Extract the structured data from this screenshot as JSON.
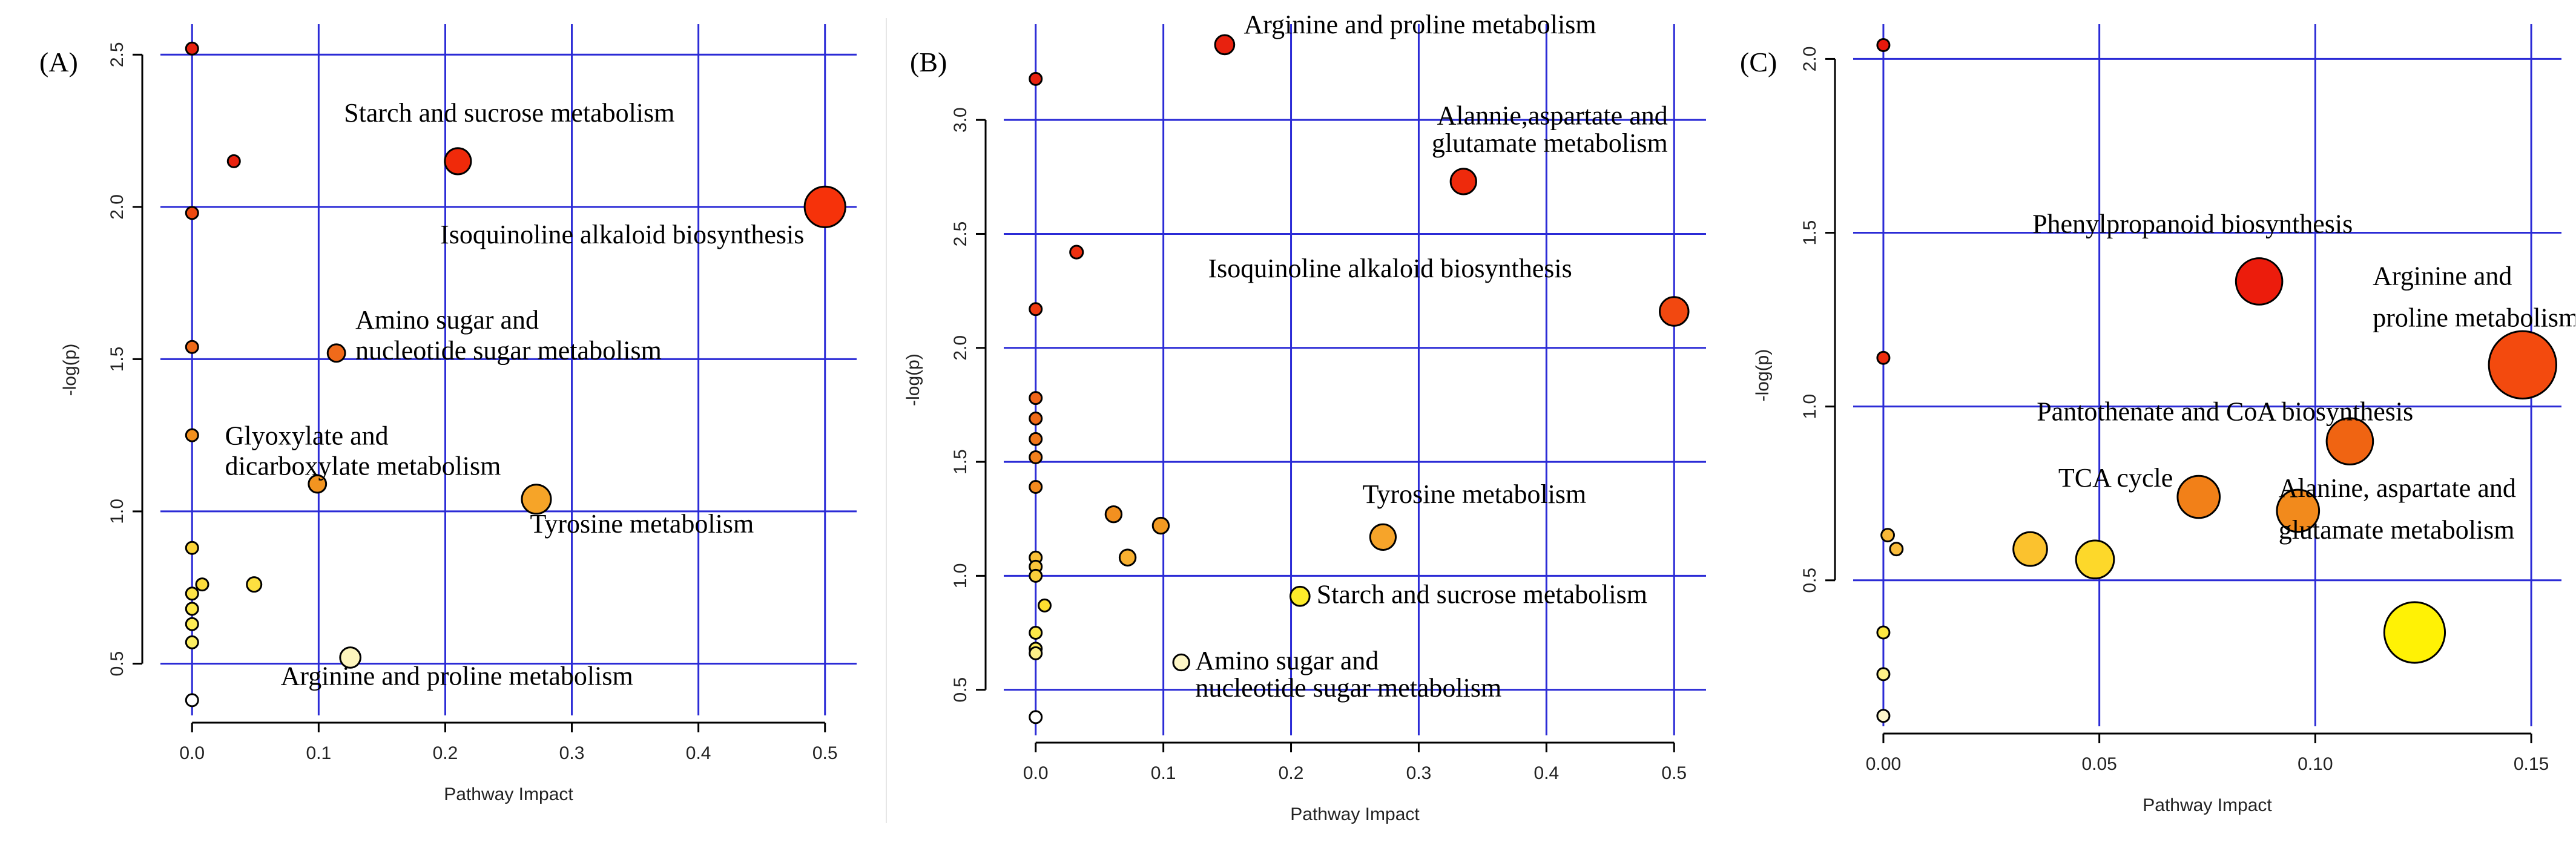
{
  "chart_data": [
    {
      "type": "scatter",
      "title": "(A)",
      "xlabel": "Pathway Impact",
      "ylabel": "-log(p)",
      "xlim": [
        -0.025,
        0.525
      ],
      "ylim": [
        0.33,
        2.6
      ],
      "xticks": [
        0,
        0.1,
        0.2,
        0.3,
        0.4,
        0.5
      ],
      "xtick_labels": [
        "0.0",
        "0.1",
        "0.2",
        "0.3",
        "0.4",
        "0.5"
      ],
      "yticks": [
        0.5,
        1.0,
        1.5,
        2.0,
        2.5
      ],
      "ytick_labels": [
        "0.5",
        "1.0",
        "1.5",
        "2.0",
        "2.5"
      ],
      "grid_x": [
        0,
        0.1,
        0.2,
        0.3,
        0.4,
        0.5
      ],
      "grid_y": [
        0.5,
        1.0,
        1.5,
        2.0,
        2.5
      ],
      "points": [
        {
          "x": 0.0,
          "y": 2.52,
          "size": 0.05,
          "color": "#e8220f"
        },
        {
          "x": 0.033,
          "y": 2.15,
          "size": 0.2,
          "color": "#e8220f"
        },
        {
          "x": 0.21,
          "y": 2.15,
          "size": 0.45,
          "color": "#f02a0a"
        },
        {
          "x": 0.0,
          "y": 1.98,
          "size": 0.05,
          "color": "#ee4a10"
        },
        {
          "x": 0.5,
          "y": 2.0,
          "size": 0.7,
          "color": "#f6320a"
        },
        {
          "x": 0.0,
          "y": 1.54,
          "size": 0.05,
          "color": "#ee6a18"
        },
        {
          "x": 0.114,
          "y": 1.52,
          "size": 0.3,
          "color": "#f06a1a"
        },
        {
          "x": 0.0,
          "y": 1.25,
          "size": 0.05,
          "color": "#f2901e"
        },
        {
          "x": 0.099,
          "y": 1.09,
          "size": 0.3,
          "color": "#f29420"
        },
        {
          "x": 0.272,
          "y": 1.04,
          "size": 0.5,
          "color": "#f6a428"
        },
        {
          "x": 0.0,
          "y": 0.88,
          "size": 0.05,
          "color": "#fbd43a"
        },
        {
          "x": 0.008,
          "y": 0.76,
          "size": 0.1,
          "color": "#fbdc3c"
        },
        {
          "x": 0.049,
          "y": 0.76,
          "size": 0.25,
          "color": "#fde040"
        },
        {
          "x": 0.0,
          "y": 0.73,
          "size": 0.05,
          "color": "#fde346"
        },
        {
          "x": 0.0,
          "y": 0.68,
          "size": 0.05,
          "color": "#fde848"
        },
        {
          "x": 0.0,
          "y": 0.63,
          "size": 0.05,
          "color": "#fdec54"
        },
        {
          "x": 0.0,
          "y": 0.57,
          "size": 0.05,
          "color": "#fdef62"
        },
        {
          "x": 0.125,
          "y": 0.52,
          "size": 0.35,
          "color": "#fdf5bd"
        },
        {
          "x": 0.0,
          "y": 0.38,
          "size": 0.05,
          "color": "#ffffff"
        }
      ],
      "annotations": [
        {
          "text": "Starch and sucrose metabolism",
          "x": 0.12,
          "y": 2.28,
          "anchor": "start"
        },
        {
          "text": "Isoquinoline alkaloid biosynthesis",
          "x": 0.196,
          "y": 1.88,
          "anchor": "start"
        },
        {
          "text": "Amino sugar and",
          "x": 0.129,
          "y": 1.6,
          "anchor": "start"
        },
        {
          "text": "nucleotide sugar metabolism",
          "x": 0.129,
          "y": 1.5,
          "anchor": "start"
        },
        {
          "text": "Glyoxylate and",
          "x": 0.026,
          "y": 1.22,
          "anchor": "start"
        },
        {
          "text": "dicarboxylate metabolism",
          "x": 0.026,
          "y": 1.12,
          "anchor": "start"
        },
        {
          "text": "Tyrosine metabolism",
          "x": 0.267,
          "y": 0.93,
          "anchor": "start"
        },
        {
          "text": "Arginine and proline metabolism",
          "x": 0.07,
          "y": 0.43,
          "anchor": "start"
        }
      ]
    },
    {
      "type": "scatter",
      "title": "(B)",
      "xlabel": "Pathway Impact",
      "ylabel": "-log(p)",
      "xlim": [
        -0.025,
        0.525
      ],
      "ylim": [
        0.3,
        3.42
      ],
      "xticks": [
        0,
        0.1,
        0.2,
        0.3,
        0.4,
        0.5
      ],
      "xtick_labels": [
        "0.0",
        "0.1",
        "0.2",
        "0.3",
        "0.4",
        "0.5"
      ],
      "yticks": [
        0.5,
        1.0,
        1.5,
        2.0,
        2.5,
        3.0
      ],
      "ytick_labels": [
        "0.5",
        "1.0",
        "1.5",
        "2.0",
        "2.5",
        "3.0"
      ],
      "grid_x": [
        0,
        0.1,
        0.2,
        0.3,
        0.4,
        0.5
      ],
      "grid_y": [
        0.5,
        1.0,
        1.5,
        2.0,
        2.5,
        3.0
      ],
      "points": [
        {
          "x": 0.148,
          "y": 3.33,
          "size": 0.3,
          "color": "#e8220f"
        },
        {
          "x": 0.0,
          "y": 3.18,
          "size": 0.05,
          "color": "#e8220f"
        },
        {
          "x": 0.335,
          "y": 2.73,
          "size": 0.4,
          "color": "#ee2a0c"
        },
        {
          "x": 0.032,
          "y": 2.42,
          "size": 0.2,
          "color": "#ee3010"
        },
        {
          "x": 0.0,
          "y": 2.17,
          "size": 0.05,
          "color": "#f03a10"
        },
        {
          "x": 0.5,
          "y": 2.16,
          "size": 0.45,
          "color": "#f24810"
        },
        {
          "x": 0.0,
          "y": 1.78,
          "size": 0.05,
          "color": "#f06418"
        },
        {
          "x": 0.0,
          "y": 1.69,
          "size": 0.05,
          "color": "#f06a18"
        },
        {
          "x": 0.0,
          "y": 1.6,
          "size": 0.05,
          "color": "#f2761a"
        },
        {
          "x": 0.0,
          "y": 1.52,
          "size": 0.05,
          "color": "#f2801c"
        },
        {
          "x": 0.0,
          "y": 1.39,
          "size": 0.05,
          "color": "#f28a1e"
        },
        {
          "x": 0.061,
          "y": 1.27,
          "size": 0.25,
          "color": "#f29020"
        },
        {
          "x": 0.098,
          "y": 1.22,
          "size": 0.25,
          "color": "#f29a22"
        },
        {
          "x": 0.272,
          "y": 1.17,
          "size": 0.4,
          "color": "#f6a42a"
        },
        {
          "x": 0.072,
          "y": 1.08,
          "size": 0.25,
          "color": "#f8b030"
        },
        {
          "x": 0.0,
          "y": 1.08,
          "size": 0.05,
          "color": "#fbc038"
        },
        {
          "x": 0.0,
          "y": 1.04,
          "size": 0.05,
          "color": "#fcc63a"
        },
        {
          "x": 0.0,
          "y": 1.0,
          "size": 0.05,
          "color": "#fcd03c"
        },
        {
          "x": 0.207,
          "y": 0.91,
          "size": 0.3,
          "color": "#fdec2a"
        },
        {
          "x": 0.007,
          "y": 0.87,
          "size": 0.1,
          "color": "#fde030"
        },
        {
          "x": 0.0,
          "y": 0.75,
          "size": 0.05,
          "color": "#fde848"
        },
        {
          "x": 0.0,
          "y": 0.68,
          "size": 0.05,
          "color": "#fdec60"
        },
        {
          "x": 0.0,
          "y": 0.66,
          "size": 0.05,
          "color": "#fdf088"
        },
        {
          "x": 0.114,
          "y": 0.62,
          "size": 0.25,
          "color": "#fdf6c6"
        },
        {
          "x": 0.0,
          "y": 0.38,
          "size": 0.05,
          "color": "#ffffff"
        }
      ],
      "annotations": [
        {
          "text": "Arginine and proline metabolism",
          "x": 0.163,
          "y": 3.38,
          "anchor": "start"
        },
        {
          "text": "Alannie,aspartate and",
          "x": 0.495,
          "y": 2.98,
          "anchor": "end"
        },
        {
          "text": "glutamate metabolism",
          "x": 0.495,
          "y": 2.86,
          "anchor": "end"
        },
        {
          "text": "Isoquinoline alkaloid biosynthesis",
          "x": 0.135,
          "y": 2.31,
          "anchor": "start"
        },
        {
          "text": "Tyrosine metabolism",
          "x": 0.256,
          "y": 1.32,
          "anchor": "start"
        },
        {
          "text": "Starch and sucrose metabolism",
          "x": 0.22,
          "y": 0.88,
          "anchor": "start"
        },
        {
          "text": "Amino sugar and",
          "x": 0.125,
          "y": 0.59,
          "anchor": "start"
        },
        {
          "text": "nucleotide sugar metabolism",
          "x": 0.125,
          "y": 0.47,
          "anchor": "start"
        }
      ]
    },
    {
      "type": "scatter",
      "title": "(C)",
      "xlabel": "Pathway Impact",
      "ylabel": "-log(p)",
      "xlim": [
        -0.007,
        0.157
      ],
      "ylim": [
        0.08,
        2.1
      ],
      "xticks": [
        0,
        0.05,
        0.1,
        0.15
      ],
      "xtick_labels": [
        "0.00",
        "0.05",
        "0.10",
        "0.15"
      ],
      "yticks": [
        0.5,
        1.0,
        1.5,
        2.0
      ],
      "ytick_labels": [
        "0.5",
        "1.0",
        "1.5",
        "2.0"
      ],
      "grid_x": [
        0,
        0.05,
        0.1,
        0.15
      ],
      "grid_y": [
        0.5,
        1.0,
        1.5,
        2.0
      ],
      "points": [
        {
          "x": 0.0,
          "y": 2.04,
          "size": 0.05,
          "color": "#e8180c"
        },
        {
          "x": 0.087,
          "y": 1.36,
          "size": 0.55,
          "color": "#ec1c0c"
        },
        {
          "x": 0.0,
          "y": 1.14,
          "size": 0.05,
          "color": "#ee2c0e"
        },
        {
          "x": 0.148,
          "y": 1.12,
          "size": 0.8,
          "color": "#f34a0e"
        },
        {
          "x": 0.108,
          "y": 0.9,
          "size": 0.55,
          "color": "#f06412"
        },
        {
          "x": 0.073,
          "y": 0.74,
          "size": 0.5,
          "color": "#f28018"
        },
        {
          "x": 0.096,
          "y": 0.7,
          "size": 0.5,
          "color": "#f28a1c"
        },
        {
          "x": 0.001,
          "y": 0.63,
          "size": 0.15,
          "color": "#f8b838"
        },
        {
          "x": 0.003,
          "y": 0.59,
          "size": 0.15,
          "color": "#f9bc3c"
        },
        {
          "x": 0.034,
          "y": 0.59,
          "size": 0.4,
          "color": "#fbc22e"
        },
        {
          "x": 0.049,
          "y": 0.56,
          "size": 0.45,
          "color": "#fdd82a"
        },
        {
          "x": 0.123,
          "y": 0.35,
          "size": 0.72,
          "color": "#fff205"
        },
        {
          "x": 0.0,
          "y": 0.35,
          "size": 0.1,
          "color": "#fde840"
        },
        {
          "x": 0.0,
          "y": 0.23,
          "size": 0.1,
          "color": "#fdf188"
        },
        {
          "x": 0.0,
          "y": 0.11,
          "size": 0.1,
          "color": "#fdf7cc"
        }
      ],
      "annotations": [
        {
          "text": "Phenylpropanoid biosynthesis",
          "x": 0.0345,
          "y": 1.5,
          "anchor": "start"
        },
        {
          "text": "Arginine and",
          "x": 0.1133,
          "y": 1.35,
          "anchor": "start"
        },
        {
          "text": "proline metabolism",
          "x": 0.1133,
          "y": 1.23,
          "anchor": "start"
        },
        {
          "text": "Pantothenate and CoA biosynthesis",
          "x": 0.0355,
          "y": 0.96,
          "anchor": "start"
        },
        {
          "text": "TCA cycle",
          "x": 0.0405,
          "y": 0.77,
          "anchor": "start"
        },
        {
          "text": "Alanine, aspartate and",
          "x": 0.0915,
          "y": 0.74,
          "anchor": "start"
        },
        {
          "text": "glutamate metabolism",
          "x": 0.0915,
          "y": 0.62,
          "anchor": "start"
        }
      ]
    }
  ]
}
